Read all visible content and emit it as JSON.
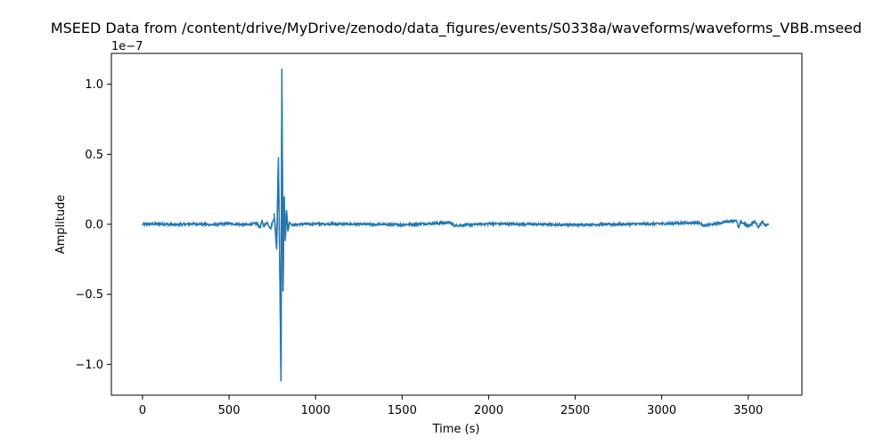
{
  "chart_data": {
    "type": "line",
    "title": "MSEED Data from /content/drive/MyDrive/zenodo/data_figures/events/S0338a/waveforms/waveforms_VBB.mseed",
    "xlabel": "Time (s)",
    "ylabel": "Amplitude",
    "y_offset_label": "1e−7",
    "xlim": [
      -180,
      3810
    ],
    "ylim": [
      -1.22,
      1.22
    ],
    "y_scale": 1e-07,
    "x_ticks": [
      0,
      500,
      1000,
      1500,
      2000,
      2500,
      3000,
      3500
    ],
    "x_tick_labels": [
      "0",
      "500",
      "1000",
      "1500",
      "2000",
      "2500",
      "3000",
      "3500"
    ],
    "y_ticks": [
      -1.0,
      -0.5,
      0.0,
      0.5,
      1.0
    ],
    "y_tick_labels": [
      "−1.0",
      "−0.5",
      "0.0",
      "0.5",
      "1.0"
    ],
    "grid": false,
    "line_color": "#1f77b4",
    "series": [
      {
        "x_range": [
          0,
          3620
        ],
        "baseline_noise": 0.008,
        "points": [
          [
            0,
            0.0
          ],
          [
            100,
            0.005
          ],
          [
            200,
            -0.006
          ],
          [
            300,
            0.007
          ],
          [
            400,
            -0.005
          ],
          [
            500,
            0.008
          ],
          [
            600,
            -0.006
          ],
          [
            660,
            0.01
          ],
          [
            680,
            -0.04
          ],
          [
            690,
            0.04
          ],
          [
            700,
            -0.02
          ],
          [
            720,
            0.02
          ],
          [
            740,
            -0.05
          ],
          [
            760,
            0.08
          ],
          [
            775,
            -0.18
          ],
          [
            785,
            0.48
          ],
          [
            795,
            -0.5
          ],
          [
            800,
            -1.12
          ],
          [
            805,
            1.11
          ],
          [
            812,
            -0.48
          ],
          [
            818,
            0.2
          ],
          [
            825,
            -0.12
          ],
          [
            832,
            0.1
          ],
          [
            840,
            -0.05
          ],
          [
            850,
            0.02
          ],
          [
            870,
            -0.01
          ],
          [
            900,
            0.0
          ],
          [
            1000,
            0.006
          ],
          [
            1500,
            -0.005
          ],
          [
            1780,
            0.02
          ],
          [
            1800,
            -0.015
          ],
          [
            2000,
            0.007
          ],
          [
            2500,
            -0.006
          ],
          [
            3000,
            0.007
          ],
          [
            3220,
            0.02
          ],
          [
            3240,
            -0.02
          ],
          [
            3430,
            0.05
          ],
          [
            3445,
            -0.05
          ],
          [
            3455,
            0.03
          ],
          [
            3500,
            -0.02
          ],
          [
            3540,
            0.03
          ],
          [
            3560,
            -0.04
          ],
          [
            3580,
            0.04
          ],
          [
            3600,
            -0.02
          ],
          [
            3620,
            0.01
          ]
        ]
      }
    ]
  }
}
